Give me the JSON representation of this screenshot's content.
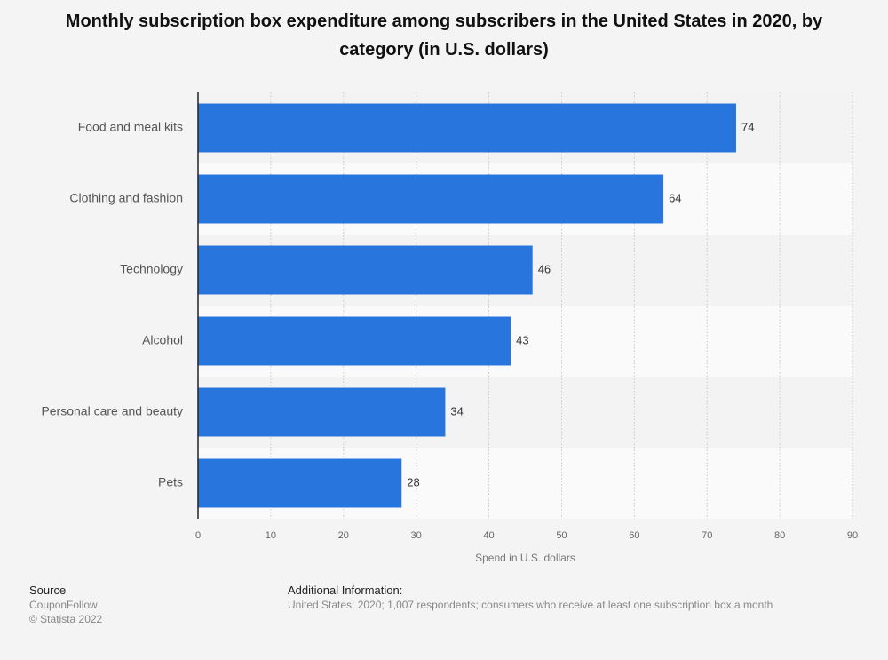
{
  "chart_data": {
    "type": "bar",
    "orientation": "horizontal",
    "title": "Monthly subscription box expenditure among subscribers in the United States in 2020, by category (in U.S. dollars)",
    "categories": [
      "Food and meal kits",
      "Clothing and fashion",
      "Technology",
      "Alcohol",
      "Personal care and beauty",
      "Pets"
    ],
    "values": [
      74,
      64,
      46,
      43,
      34,
      28
    ],
    "color": "#2876dd",
    "xlim": [
      0,
      90
    ],
    "xticks": [
      0,
      10,
      20,
      30,
      40,
      50,
      60,
      70,
      80,
      90
    ],
    "x_label": "Spend in U.S. dollars",
    "grid": true
  },
  "source": {
    "heading": "Source",
    "name": "CouponFollow",
    "copyright": "© Statista 2022"
  },
  "additional_info": {
    "heading": "Additional Information:",
    "text": "United States; 2020; 1,007 respondents; consumers who receive at least one subscription box a month"
  }
}
